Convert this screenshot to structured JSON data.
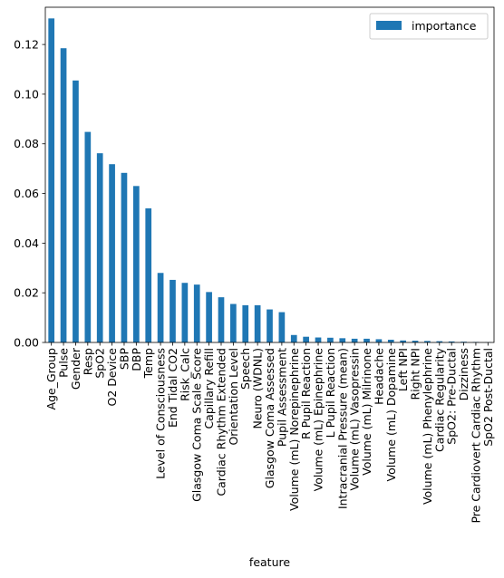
{
  "chart_data": {
    "type": "bar",
    "xlabel": "feature",
    "ylabel": "",
    "ylim": [
      0,
      0.135
    ],
    "yticks": [
      "0.00",
      "0.02",
      "0.04",
      "0.06",
      "0.08",
      "0.10",
      "0.12"
    ],
    "legend": {
      "position": "top-right",
      "entries": [
        "importance"
      ]
    },
    "bar_color": "#1f77b4",
    "categories": [
      "Age_Group",
      "Pulse",
      "Gender",
      "Resp",
      "SpO2",
      "O2 Device",
      "SBP",
      "DBP",
      "Temp",
      "Level of Consciousness",
      "End Tidal CO2",
      "Risk_Calc",
      "Glasgow Coma Scale Score",
      "Capillary Refill",
      "Cardiac Rhythm Extended",
      "Orientation Level",
      "Speech",
      "Neuro (WDNL)",
      "Glasgow Coma Assessed",
      "Pupil Assessment",
      "Volume (mL) Norepinephrine",
      "R Pupil Reaction",
      "Volume (mL) Epinephrine",
      "L Pupil Reaction",
      "Intracranial Pressure (mean)",
      "Volume (mL) Vasopressin",
      "Volume (mL) Milrinone",
      "Headache",
      "Volume (mL) Dopamine",
      "Left NPI",
      "Right NPI",
      "Volume (mL) Phenylephrine",
      "Cardiac Regularity",
      "SpO2: Pre-Ductal",
      "Dizziness",
      "Pre Cardiovert Cardiac Rhythm",
      "SpO2 Post-Ductal"
    ],
    "series": [
      {
        "name": "importance",
        "values": [
          0.1305,
          0.1185,
          0.1055,
          0.0848,
          0.0762,
          0.0718,
          0.0683,
          0.063,
          0.054,
          0.028,
          0.0252,
          0.024,
          0.0233,
          0.0203,
          0.0182,
          0.0155,
          0.015,
          0.015,
          0.0133,
          0.0122,
          0.003,
          0.0023,
          0.002,
          0.0019,
          0.0017,
          0.0015,
          0.0015,
          0.0013,
          0.0011,
          0.0008,
          0.0007,
          0.0006,
          0.0005,
          0.0004,
          0.0003,
          0.0002,
          0.0001
        ]
      }
    ]
  }
}
